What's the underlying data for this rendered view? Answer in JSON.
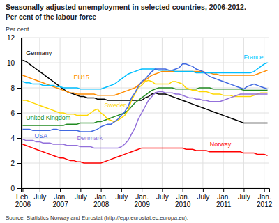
{
  "chart_data": {
    "type": "line",
    "title": "Seasonally adjusted unemployment in selected countries, 2006-2012.",
    "subtitle": "Per cent of the labour force",
    "y_label": "Per cent",
    "source": "Source: Statistics Norway and Eurostat (http://epp.eurostat.ec.europa.eu).",
    "categories": [
      "Feb.\n2006",
      null,
      null,
      null,
      null,
      "July",
      null,
      null,
      null,
      null,
      null,
      "Jan.\n2007",
      null,
      null,
      null,
      null,
      null,
      "July",
      null,
      null,
      null,
      null,
      null,
      "Jan.\n2008",
      null,
      null,
      null,
      null,
      null,
      "July",
      null,
      null,
      null,
      null,
      null,
      "Jan.\n2009",
      null,
      null,
      null,
      null,
      null,
      "July",
      null,
      null,
      null,
      null,
      null,
      "Jan.\n2010",
      null,
      null,
      null,
      null,
      null,
      "July",
      null,
      null,
      null,
      null,
      null,
      "Jan.\n2011",
      null,
      null,
      null,
      null,
      null,
      "July",
      null,
      null,
      null,
      null,
      null,
      "Jan.\n2012",
      null
    ],
    "series": [
      {
        "name": "Germany",
        "color": "#000000",
        "values": [
          10.2,
          10.1,
          9.9,
          9.7,
          9.5,
          9.3,
          9.1,
          8.9,
          8.7,
          8.5,
          8.3,
          8.1,
          7.9,
          7.7,
          7.6,
          7.5,
          7.4,
          7.3,
          7.3,
          7.2,
          7.2,
          7.2,
          7.1,
          7.1,
          7.1,
          7.0,
          7.0,
          7.0,
          7.0,
          7.0,
          7.0,
          7.0,
          7.0,
          7.0,
          7.0,
          7.0,
          7.2,
          7.3,
          7.5,
          7.6,
          7.5,
          7.5,
          7.5,
          7.4,
          7.3,
          7.2,
          7.1,
          7.0,
          6.9,
          6.8,
          6.7,
          6.6,
          6.5,
          6.4,
          6.3,
          6.2,
          6.1,
          6.0,
          5.9,
          5.8,
          5.7,
          5.6,
          5.5,
          5.4,
          5.3,
          5.2,
          5.2,
          5.2,
          5.2,
          5.2,
          5.2,
          5.2,
          5.2
        ]
      },
      {
        "name": "EU15",
        "color": "#FF8C00",
        "values": [
          9.0,
          8.9,
          8.8,
          8.7,
          8.6,
          8.5,
          8.4,
          8.3,
          8.2,
          8.1,
          8.0,
          7.9,
          7.8,
          7.7,
          7.6,
          7.6,
          7.5,
          7.5,
          7.5,
          7.5,
          7.5,
          7.5,
          7.4,
          7.4,
          7.4,
          7.4,
          7.4,
          7.4,
          7.5,
          7.6,
          7.7,
          7.8,
          7.9,
          8.0,
          8.2,
          8.4,
          8.6,
          8.8,
          9.0,
          9.1,
          9.2,
          9.3,
          9.3,
          9.3,
          9.3,
          9.3,
          9.3,
          9.3,
          9.3,
          9.3,
          9.3,
          9.3,
          9.3,
          9.3,
          9.2,
          9.2,
          9.1,
          9.1,
          9.0,
          9.0,
          9.0,
          9.0,
          9.0,
          9.0,
          9.0,
          9.0,
          9.0,
          9.0,
          9.0,
          9.1,
          9.2,
          9.3,
          9.4
        ]
      },
      {
        "name": "France",
        "color": "#00BFFF",
        "values": [
          8.5,
          8.4,
          8.4,
          8.3,
          8.3,
          8.3,
          8.2,
          8.2,
          8.2,
          8.2,
          8.1,
          8.1,
          8.0,
          8.0,
          8.0,
          8.0,
          8.0,
          7.9,
          7.9,
          7.9,
          7.9,
          7.9,
          7.9,
          7.9,
          8.0,
          8.1,
          8.2,
          8.3,
          8.5,
          8.7,
          8.9,
          9.1,
          9.2,
          9.3,
          9.4,
          9.5,
          9.5,
          9.5,
          9.5,
          9.5,
          9.4,
          9.4,
          9.4,
          9.4,
          9.4,
          9.3,
          9.3,
          9.3,
          9.3,
          9.3,
          9.3,
          9.2,
          9.2,
          9.2,
          9.2,
          9.2,
          9.2,
          9.2,
          9.2,
          9.2,
          9.2,
          9.2,
          9.2,
          9.2,
          9.2,
          9.2,
          9.2,
          9.2,
          9.3,
          9.5,
          9.7,
          9.9,
          10.0
        ]
      },
      {
        "name": "United Kingdom",
        "color": "#228B22",
        "values": [
          5.0,
          5.0,
          5.0,
          5.0,
          5.0,
          5.0,
          5.0,
          5.0,
          5.0,
          5.0,
          5.0,
          5.0,
          5.0,
          5.1,
          5.1,
          5.1,
          5.1,
          5.2,
          5.2,
          5.2,
          5.2,
          5.2,
          5.3,
          5.3,
          5.4,
          5.5,
          5.6,
          5.7,
          5.8,
          5.9,
          6.0,
          6.2,
          6.5,
          6.8,
          7.0,
          7.2,
          7.4,
          7.6,
          7.8,
          7.9,
          8.0,
          8.0,
          8.0,
          8.0,
          8.0,
          7.9,
          7.9,
          7.9,
          7.9,
          7.9,
          7.9,
          7.9,
          8.0,
          8.0,
          8.0,
          8.0,
          7.9,
          7.9,
          7.9,
          7.9,
          7.9,
          7.9,
          7.9,
          7.9,
          7.9,
          7.8,
          7.8,
          7.8,
          7.8,
          7.8,
          7.8,
          7.8,
          7.8
        ]
      },
      {
        "name": "Sweden",
        "color": "#FFD700",
        "values": [
          7.0,
          7.0,
          6.9,
          6.8,
          6.7,
          6.6,
          6.5,
          6.4,
          6.3,
          6.2,
          6.1,
          6.0,
          6.0,
          5.9,
          5.9,
          5.9,
          5.8,
          5.8,
          5.8,
          5.8,
          6.0,
          6.2,
          6.3,
          6.0,
          5.8,
          5.5,
          5.4,
          5.3,
          5.4,
          5.6,
          5.8,
          6.2,
          7.0,
          7.5,
          8.0,
          8.2,
          8.5,
          8.6,
          8.5,
          8.3,
          8.3,
          8.3,
          8.3,
          8.3,
          8.5,
          8.5,
          8.4,
          8.3,
          8.0,
          7.9,
          7.8,
          7.8,
          7.7,
          7.7,
          7.7,
          7.6,
          7.5,
          7.5,
          7.5,
          7.4,
          7.4,
          7.4,
          7.3,
          7.3,
          7.3,
          7.3,
          7.3,
          7.3,
          7.4,
          7.5,
          7.6,
          7.6,
          7.6
        ]
      },
      {
        "name": "USA",
        "color": "#4169E1",
        "values": [
          4.7,
          4.7,
          4.7,
          4.6,
          4.6,
          4.6,
          4.6,
          4.6,
          4.6,
          4.7,
          4.7,
          4.6,
          4.6,
          4.6,
          4.6,
          4.6,
          4.6,
          4.5,
          4.5,
          4.5,
          4.5,
          4.6,
          4.7,
          4.9,
          5.0,
          5.1,
          5.1,
          5.3,
          5.5,
          5.8,
          6.1,
          6.5,
          7.2,
          7.6,
          8.1,
          8.5,
          8.7,
          9.0,
          9.3,
          9.5,
          9.5,
          9.5,
          9.5,
          9.4,
          9.4,
          9.5,
          9.6,
          9.9,
          9.9,
          9.8,
          9.7,
          9.5,
          9.4,
          9.3,
          9.1,
          8.9,
          8.8,
          8.7,
          8.6,
          8.5,
          8.4,
          8.3,
          8.2,
          8.1,
          8.0,
          7.9,
          8.1,
          8.2,
          8.3,
          8.2,
          8.1,
          8.0,
          7.9
        ]
      },
      {
        "name": "Denmark",
        "color": "#9370DB",
        "values": [
          3.9,
          3.8,
          3.8,
          3.8,
          3.7,
          3.7,
          3.6,
          3.6,
          3.6,
          3.5,
          3.5,
          3.5,
          3.5,
          3.4,
          3.4,
          3.4,
          3.4,
          3.3,
          3.3,
          3.3,
          3.3,
          3.2,
          3.2,
          3.2,
          3.2,
          3.2,
          3.2,
          3.2,
          3.2,
          3.3,
          3.5,
          3.8,
          4.3,
          4.8,
          5.5,
          6.0,
          6.5,
          7.0,
          7.3,
          7.6,
          7.7,
          7.7,
          7.6,
          7.6,
          7.6,
          7.5,
          7.5,
          7.4,
          7.3,
          7.2,
          7.2,
          7.1,
          7.1,
          7.0,
          7.0,
          6.9,
          6.9,
          6.9,
          6.9,
          7.0,
          7.1,
          7.2,
          7.3,
          7.4,
          7.5,
          7.5,
          7.5,
          7.5,
          7.5,
          7.5,
          7.5,
          7.5,
          7.5
        ]
      },
      {
        "name": "Norway",
        "color": "#FF0000",
        "values": [
          3.5,
          3.4,
          3.3,
          3.2,
          3.1,
          3.0,
          2.9,
          2.8,
          2.7,
          2.6,
          2.5,
          2.4,
          2.4,
          2.3,
          2.2,
          2.2,
          2.1,
          2.1,
          2.0,
          2.0,
          2.0,
          2.0,
          2.0,
          2.0,
          2.1,
          2.2,
          2.3,
          2.4,
          2.5,
          2.6,
          2.7,
          2.8,
          2.9,
          3.0,
          3.1,
          3.2,
          3.2,
          3.2,
          3.2,
          3.2,
          3.2,
          3.2,
          3.2,
          3.2,
          3.2,
          3.2,
          3.2,
          3.2,
          3.1,
          3.1,
          3.1,
          3.0,
          3.0,
          3.0,
          3.0,
          2.9,
          2.9,
          2.9,
          2.9,
          2.9,
          2.9,
          2.9,
          2.9,
          2.9,
          2.9,
          2.8,
          2.8,
          2.8,
          2.8,
          2.7,
          2.7,
          2.7,
          2.6
        ]
      }
    ],
    "ylim": [
      0,
      12
    ],
    "yticks": [
      0,
      2,
      4,
      6,
      8,
      10,
      12
    ],
    "grid": true
  }
}
